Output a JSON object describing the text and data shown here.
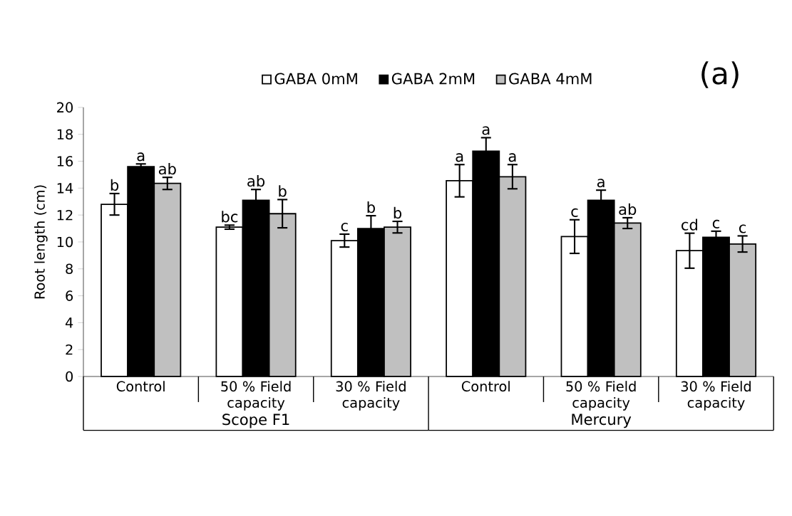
{
  "chart_data": {
    "type": "bar",
    "ylabel": "Root length (cm)",
    "categories": [
      "Control",
      "50 % Field capacity",
      "30 % Field capacity",
      "Control",
      "50 % Field capacity",
      "30 % Field capacity"
    ],
    "series": [
      {
        "name": "GABA 0mM",
        "color": "#ffffff",
        "values": [
          12.8,
          11.1,
          10.1,
          14.55,
          10.4,
          9.35
        ],
        "errors": [
          0.8,
          0.15,
          0.48,
          1.2,
          1.25,
          1.3
        ],
        "value_labels": [
          "b",
          "bc",
          "c",
          "a",
          "c",
          "cd"
        ]
      },
      {
        "name": "GABA 2mM",
        "color": "#000000",
        "values": [
          15.6,
          13.1,
          11.0,
          16.75,
          13.1,
          10.35
        ],
        "errors": [
          0.2,
          0.8,
          0.95,
          1.0,
          0.75,
          0.45
        ],
        "value_labels": [
          "a",
          "ab",
          "b",
          "a",
          "a",
          "c"
        ]
      },
      {
        "name": "GABA 4mM",
        "color": "#c0c0c0",
        "values": [
          14.35,
          12.1,
          11.1,
          14.85,
          11.4,
          9.85
        ],
        "errors": [
          0.45,
          1.05,
          0.43,
          0.9,
          0.4,
          0.6
        ],
        "value_labels": [
          "ab",
          "b",
          "b",
          "a",
          "ab",
          "c"
        ]
      }
    ],
    "ylim": [
      0,
      20
    ],
    "yticks": [
      0,
      2,
      4,
      6,
      8,
      10,
      12,
      14,
      16,
      18,
      20
    ],
    "grid": false,
    "legend": "top",
    "annotations": [
      "Scope F1",
      "Mercury",
      "(a)"
    ]
  }
}
